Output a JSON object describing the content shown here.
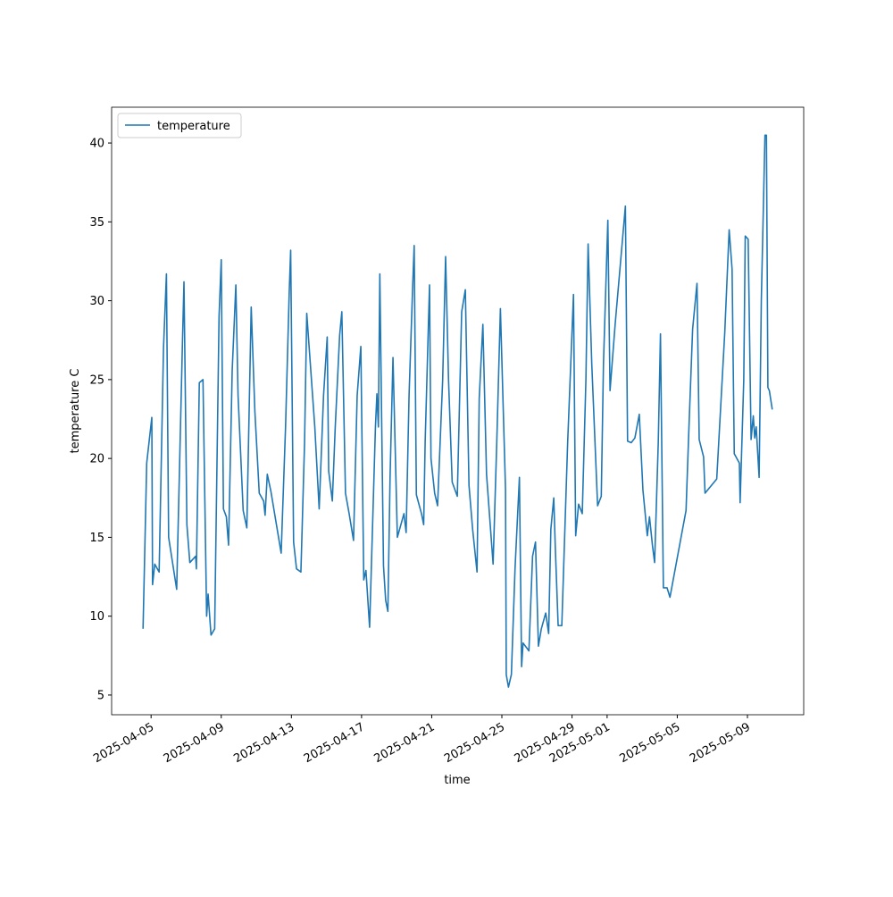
{
  "chart_data": {
    "type": "line",
    "xlabel": "time",
    "ylabel": "temperature C",
    "x": [
      "2025-04-04T13:00",
      "2025-04-04T18:00",
      "2025-04-05T01:00",
      "2025-04-05T02:00",
      "2025-04-05T05:00",
      "2025-04-05T11:00",
      "2025-04-05T17:00",
      "2025-04-05T21:00",
      "2025-04-06T00:00",
      "2025-04-06T05:00",
      "2025-04-06T11:00",
      "2025-04-06T19:00",
      "2025-04-06T21:00",
      "2025-04-07T01:00",
      "2025-04-07T05:00",
      "2025-04-07T13:00",
      "2025-04-07T14:00",
      "2025-04-07T18:00",
      "2025-04-07T23:00",
      "2025-04-08T04:00",
      "2025-04-08T06:00",
      "2025-04-08T10:00",
      "2025-04-08T15:00",
      "2025-04-08T21:00",
      "2025-04-09T00:00",
      "2025-04-09T03:00",
      "2025-04-09T07:00",
      "2025-04-09T10:00",
      "2025-04-09T15:00",
      "2025-04-09T20:00",
      "2025-04-09T23:00",
      "2025-04-10T06:00",
      "2025-04-10T11:00",
      "2025-04-10T17:00",
      "2025-04-10T22:00",
      "2025-04-11T04:00",
      "2025-04-11T10:00",
      "2025-04-11T12:00",
      "2025-04-11T15:00",
      "2025-04-11T20:00",
      "2025-04-12T10:00",
      "2025-04-12T16:00",
      "2025-04-12T21:00",
      "2025-04-12T23:00",
      "2025-04-13T03:00",
      "2025-04-13T07:00",
      "2025-04-13T13:00",
      "2025-04-13T18:00",
      "2025-04-13T21:00",
      "2025-04-14T08:00",
      "2025-04-14T14:00",
      "2025-04-14T20:00",
      "2025-04-15T01:00",
      "2025-04-15T03:00",
      "2025-04-15T08:00",
      "2025-04-15T12:00",
      "2025-04-15T18:00",
      "2025-04-15T21:00",
      "2025-04-16T02:00",
      "2025-04-16T07:00",
      "2025-04-16T13:00",
      "2025-04-16T18:00",
      "2025-04-16T23:00",
      "2025-04-17T03:00",
      "2025-04-17T06:00",
      "2025-04-17T11:00",
      "2025-04-17T19:00",
      "2025-04-17T21:00",
      "2025-04-17T23:00",
      "2025-04-18T01:00",
      "2025-04-18T06:00",
      "2025-04-18T09:00",
      "2025-04-18T12:00",
      "2025-04-18T15:00",
      "2025-04-18T19:00",
      "2025-04-19T01:00",
      "2025-04-19T10:00",
      "2025-04-19T13:00",
      "2025-04-19T17:00",
      "2025-04-19T22:00",
      "2025-04-20T00:00",
      "2025-04-20T03:00",
      "2025-04-20T10:00",
      "2025-04-20T13:00",
      "2025-04-20T15:00",
      "2025-04-20T21:00",
      "2025-04-20T23:00",
      "2025-04-21T04:00",
      "2025-04-21T08:00",
      "2025-04-21T15:00",
      "2025-04-21T19:00",
      "2025-04-21T23:00",
      "2025-04-22T04:00",
      "2025-04-22T11:00",
      "2025-04-22T17:00",
      "2025-04-22T22:00",
      "2025-04-23T03:00",
      "2025-04-23T08:00",
      "2025-04-23T14:00",
      "2025-04-23T17:00",
      "2025-04-23T22:00",
      "2025-04-24T03:00",
      "2025-04-24T12:00",
      "2025-04-24T17:00",
      "2025-04-24T22:00",
      "2025-04-25T05:00",
      "2025-04-25T06:00",
      "2025-04-25T09:00",
      "2025-04-25T13:00",
      "2025-04-25T18:00",
      "2025-04-26T00:00",
      "2025-04-26T03:00",
      "2025-04-26T05:00",
      "2025-04-26T13:00",
      "2025-04-26T18:00",
      "2025-04-26T22:00",
      "2025-04-27T02:00",
      "2025-04-27T06:00",
      "2025-04-27T12:00",
      "2025-04-27T16:00",
      "2025-04-27T19:00",
      "2025-04-27T23:00",
      "2025-04-28T01:00",
      "2025-04-28T05:00",
      "2025-04-28T10:00",
      "2025-04-28T18:00",
      "2025-04-29T02:00",
      "2025-04-29T05:00",
      "2025-04-29T09:00",
      "2025-04-29T14:00",
      "2025-04-29T19:00",
      "2025-04-29T22:00",
      "2025-04-30T03:00",
      "2025-04-30T11:00",
      "2025-04-30T16:00",
      "2025-04-30T19:00",
      "2025-05-01T01:00",
      "2025-05-01T04:00",
      "2025-05-01T11:00",
      "2025-05-02T01:00",
      "2025-05-02T04:00",
      "2025-05-02T09:00",
      "2025-05-02T14:00",
      "2025-05-02T20:00",
      "2025-05-03T01:00",
      "2025-05-03T07:00",
      "2025-05-03T10:00",
      "2025-05-03T14:00",
      "2025-05-03T17:00",
      "2025-05-03T22:00",
      "2025-05-04T01:00",
      "2025-05-04T05:00",
      "2025-05-04T10:00",
      "2025-05-04T14:00",
      "2025-05-05T12:00",
      "2025-05-05T16:00",
      "2025-05-05T21:00",
      "2025-05-06T03:00",
      "2025-05-06T06:00",
      "2025-05-06T12:00",
      "2025-05-06T14:00",
      "2025-05-07T06:00",
      "2025-05-07T17:00",
      "2025-05-07T23:00",
      "2025-05-08T03:00",
      "2025-05-08T06:00",
      "2025-05-08T13:00",
      "2025-05-08T14:00",
      "2025-05-08T19:00",
      "2025-05-08T21:00",
      "2025-05-09T01:00",
      "2025-05-09T05:00",
      "2025-05-09T08:00",
      "2025-05-09T10:00",
      "2025-05-09T12:00",
      "2025-05-09T16:00",
      "2025-05-09T19:00",
      "2025-05-10T00:00",
      "2025-05-10T02:00",
      "2025-05-10T04:00",
      "2025-05-10T06:00",
      "2025-05-10T10:00"
    ],
    "series": [
      {
        "name": "temperature",
        "color": "#1f77b4",
        "values": [
          9.2,
          19.7,
          22.6,
          12,
          13.3,
          12.8,
          27,
          31.7,
          15,
          13.5,
          11.7,
          27.5,
          31.2,
          15.8,
          13.4,
          13.8,
          13,
          24.8,
          25,
          10,
          11.4,
          8.8,
          9.2,
          29,
          32.6,
          16.8,
          16.3,
          14.5,
          25.6,
          31,
          24,
          16.7,
          15.6,
          29.6,
          23,
          17.8,
          17.3,
          16.4,
          19,
          17.9,
          14,
          22,
          30.5,
          33.2,
          14.7,
          13,
          12.8,
          21,
          29.2,
          22,
          16.8,
          24,
          27.7,
          19.2,
          17.3,
          22,
          27.8,
          29.3,
          17.8,
          16.5,
          14.8,
          24,
          27.1,
          12.3,
          12.9,
          9.3,
          22,
          24.1,
          22,
          31.7,
          13.2,
          11,
          10.3,
          18.8,
          26.4,
          15,
          16.5,
          15.3,
          24,
          31,
          33.5,
          17.7,
          16.5,
          15.8,
          21,
          31,
          20,
          17.8,
          17,
          25,
          32.8,
          25,
          18.5,
          17.6,
          29.3,
          30.7,
          18.3,
          15.5,
          12.8,
          23.8,
          28.5,
          19,
          13.3,
          21,
          29.5,
          18,
          6.3,
          5.5,
          6.3,
          13,
          18.8,
          6.8,
          8.3,
          7.8,
          13.8,
          14.7,
          8.1,
          9.2,
          10.2,
          8.9,
          15.5,
          17.5,
          14.5,
          9.4,
          9.4,
          21,
          30.4,
          15.1,
          17.1,
          16.5,
          25,
          33.6,
          26,
          17,
          17.6,
          26,
          35.1,
          24.3,
          28.5,
          36,
          21.1,
          21,
          21.3,
          22.8,
          18,
          15.1,
          16.3,
          14.5,
          13.4,
          21,
          27.9,
          11.8,
          11.8,
          11.2,
          16.7,
          22,
          28.2,
          31.1,
          21.2,
          20.1,
          17.8,
          18.7,
          28,
          34.5,
          32,
          20.3,
          19.7,
          17.2,
          25,
          34.1,
          33.9,
          21.2,
          22.7,
          21.3,
          22,
          18.8,
          30,
          40.5,
          40.5,
          24.5,
          24.3,
          23.1
        ]
      }
    ],
    "xlim": [
      "2025-04-02T18:00",
      "2025-05-12T05:00"
    ],
    "xticks": [
      "2025-04-05",
      "2025-04-09",
      "2025-04-13",
      "2025-04-17",
      "2025-04-21",
      "2025-04-25",
      "2025-04-29",
      "2025-05-01",
      "2025-05-05",
      "2025-05-09"
    ],
    "ylim": [
      3.75,
      42.27
    ],
    "yticks": [
      5,
      10,
      15,
      20,
      25,
      30,
      35,
      40
    ],
    "legend": "upper left"
  }
}
